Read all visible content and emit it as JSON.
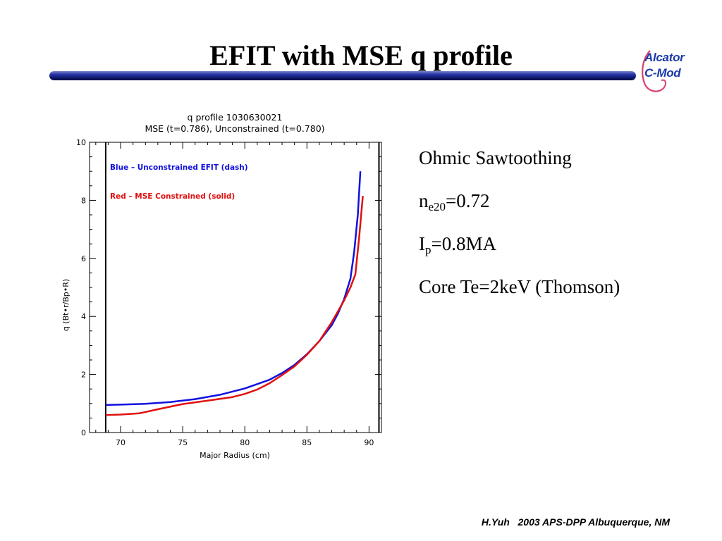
{
  "slide": {
    "title": "EFIT with MSE q profile",
    "footer": "H.Yuh   2003 APS-DPP Albuquerque, NM",
    "logo": {
      "line1": "Alcator",
      "line2": "C-Mod",
      "text_color": "#1a3aa8",
      "swirl_color": "#d8406a"
    },
    "rule_color": "#1a2590"
  },
  "notes": {
    "heading": "Ohmic Sawtoothing",
    "density": {
      "base": "n",
      "sub": "e20",
      "value": "=0.72"
    },
    "current": {
      "base": "I",
      "sub": "p",
      "value": "=0.8MA"
    },
    "temperature": "Core Te=2keV (Thomson)"
  },
  "chart_data": {
    "type": "line",
    "title": "q profile 1030630021",
    "subtitle": "MSE (t=0.786), Unconstrained (t=0.780)",
    "xlabel": "Major Radius (cm)",
    "ylabel": "q (Bt•r/Bp•R)",
    "xlim": [
      67.5,
      91.0
    ],
    "ylim": [
      0,
      10
    ],
    "xticks": [
      70,
      75,
      80,
      85,
      90
    ],
    "yticks": [
      0,
      2,
      4,
      6,
      8,
      10
    ],
    "grid": false,
    "legend_position": "top-left",
    "vlines": [
      68.8,
      90.8
    ],
    "series": [
      {
        "name": "Blue – Unconstrained EFIT (dash)",
        "color": "#1010e0",
        "x": [
          68.8,
          70,
          72,
          74,
          76,
          78,
          80,
          82,
          83,
          84,
          85,
          86,
          87,
          87.5,
          88,
          88.5,
          88.8,
          89.1,
          89.3
        ],
        "y": [
          0.95,
          0.96,
          0.99,
          1.05,
          1.15,
          1.3,
          1.52,
          1.82,
          2.05,
          2.33,
          2.7,
          3.15,
          3.7,
          4.1,
          4.6,
          5.3,
          6.2,
          7.5,
          9.0
        ]
      },
      {
        "name": "Red  – MSE Constrained (solid)",
        "color": "#e01010",
        "x": [
          68.8,
          70,
          71.5,
          73,
          75,
          77,
          79,
          80,
          81,
          82,
          83,
          84,
          85,
          86,
          87,
          88,
          88.5,
          88.9,
          89.2,
          89.5
        ],
        "y": [
          0.6,
          0.62,
          0.66,
          0.8,
          0.98,
          1.1,
          1.22,
          1.33,
          1.48,
          1.7,
          1.98,
          2.28,
          2.68,
          3.15,
          3.8,
          4.55,
          5.0,
          5.45,
          6.7,
          8.15
        ]
      }
    ]
  }
}
